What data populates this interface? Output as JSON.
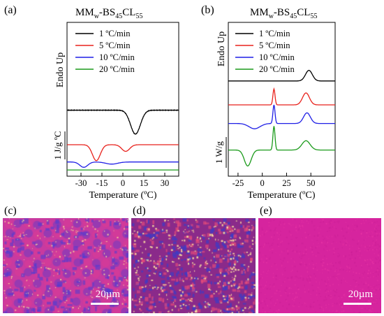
{
  "colors": {
    "black": "#000000",
    "red": "#e8221c",
    "blue": "#1f1fe6",
    "green": "#1a9a1a"
  },
  "panels": {
    "a": {
      "label": "(a)",
      "title_base": "MM",
      "title_sub1": "w",
      "title_mid": "-BS",
      "title_sub2": "45",
      "title_mid2": "CL",
      "title_sub3": "55",
      "yaxis_label": "Endo Up",
      "scale_label": "1 J/g ºC"
    },
    "b": {
      "label": "(b)",
      "title_base": "MM",
      "title_sub1": "w",
      "title_mid": "-BS",
      "title_sub2": "45",
      "title_mid2": "CL",
      "title_sub3": "55",
      "yaxis_label": "Endo Up",
      "scale_label": "1 W/g"
    },
    "c": {
      "label": "(c)",
      "scale_label": "20µm"
    },
    "d": {
      "label": "(d)"
    },
    "e": {
      "label": "(e)",
      "scale_label": "20µm"
    }
  },
  "chart_data": [
    {
      "type": "line",
      "panel": "a",
      "xlabel": "Temperature (ºC)",
      "xlim": [
        -40,
        40
      ],
      "xticks": [
        -30,
        -15,
        0,
        15,
        30
      ],
      "tick_labels": [
        "-30",
        "-15",
        "0",
        "15",
        "30"
      ],
      "legend": "upper-left",
      "series": [
        {
          "name": "1 ºC/min",
          "color": "black",
          "offset": 2.3,
          "peaks": [
            [
              9,
              -0.9,
              5
            ]
          ]
        },
        {
          "name": "5 ºC/min",
          "color": "red",
          "offset": 1.0,
          "peaks": [
            [
              -19,
              -0.6,
              4
            ],
            [
              2,
              -0.25,
              4
            ]
          ]
        },
        {
          "name": "10 ºC/min",
          "color": "blue",
          "offset": 0.35,
          "peaks": [
            [
              -28,
              -0.2,
              4
            ],
            [
              -8,
              -0.08,
              6
            ]
          ]
        },
        {
          "name": "20 ºC/min",
          "color": "green",
          "offset": 0.05,
          "peaks": []
        }
      ]
    },
    {
      "type": "line",
      "panel": "b",
      "xlabel": "Temperature (ºC)",
      "xlim": [
        -35,
        75
      ],
      "xticks": [
        -25,
        0,
        25,
        50
      ],
      "tick_labels": [
        "-25",
        "0",
        "25",
        "50"
      ],
      "legend": "upper-left",
      "series": [
        {
          "name": "1 ºC/min",
          "color": "black",
          "offset": 3.4,
          "peaks": [
            [
              48,
              0.4,
              5
            ]
          ]
        },
        {
          "name": "5 ºC/min",
          "color": "red",
          "offset": 2.5,
          "peaks": [
            [
              12,
              0.6,
              1.5
            ],
            [
              45,
              0.45,
              5
            ]
          ]
        },
        {
          "name": "10 ºC/min",
          "color": "blue",
          "offset": 1.8,
          "peaks": [
            [
              -8,
              -0.2,
              8
            ],
            [
              12,
              0.7,
              1.5
            ],
            [
              46,
              0.4,
              5
            ]
          ]
        },
        {
          "name": "20 ºC/min",
          "color": "green",
          "offset": 0.8,
          "peaks": [
            [
              -15,
              -0.6,
              5
            ],
            [
              12,
              0.9,
              1.5
            ],
            [
              45,
              0.35,
              6
            ]
          ]
        }
      ]
    }
  ]
}
